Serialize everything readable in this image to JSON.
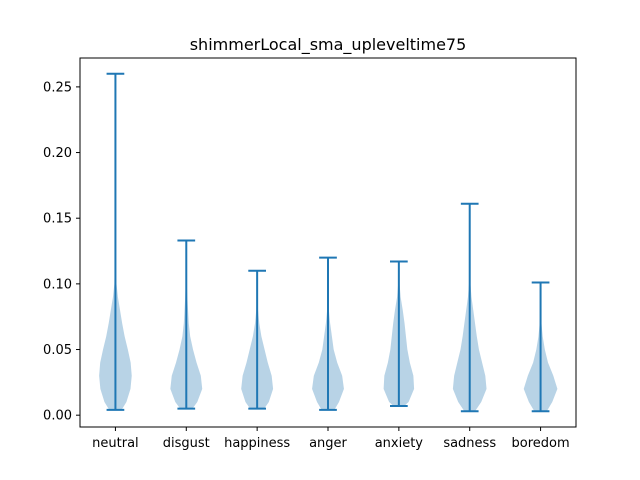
{
  "chart_data": {
    "type": "violin",
    "title": "shimmerLocal_sma_upleveltime75",
    "xlabel": "",
    "ylabel": "",
    "categories": [
      "neutral",
      "disgust",
      "happiness",
      "anger",
      "anxiety",
      "sadness",
      "boredom"
    ],
    "ylim": [
      -0.009,
      0.272
    ],
    "yticks": [
      0.0,
      0.05,
      0.1,
      0.15,
      0.2,
      0.25
    ],
    "ytick_labels": [
      "0.00",
      "0.05",
      "0.10",
      "0.15",
      "0.20",
      "0.25"
    ],
    "grid": false,
    "violin_color": "#a6c8e0",
    "line_color": "#1f77b4",
    "series": [
      {
        "category": "neutral",
        "min": 0.004,
        "max": 0.26,
        "density": [
          [
            0.004,
            0.35
          ],
          [
            0.01,
            0.62
          ],
          [
            0.02,
            0.85
          ],
          [
            0.03,
            0.92
          ],
          [
            0.04,
            0.86
          ],
          [
            0.05,
            0.7
          ],
          [
            0.06,
            0.52
          ],
          [
            0.07,
            0.38
          ],
          [
            0.08,
            0.26
          ],
          [
            0.09,
            0.14
          ],
          [
            0.1,
            0.06
          ],
          [
            0.12,
            0.03
          ],
          [
            0.15,
            0.02
          ],
          [
            0.2,
            0.01
          ],
          [
            0.26,
            0.005
          ]
        ]
      },
      {
        "category": "disgust",
        "min": 0.005,
        "max": 0.133,
        "density": [
          [
            0.005,
            0.35
          ],
          [
            0.01,
            0.62
          ],
          [
            0.02,
            0.9
          ],
          [
            0.03,
            0.82
          ],
          [
            0.04,
            0.58
          ],
          [
            0.05,
            0.38
          ],
          [
            0.06,
            0.22
          ],
          [
            0.07,
            0.14
          ],
          [
            0.08,
            0.1
          ],
          [
            0.09,
            0.06
          ],
          [
            0.1,
            0.03
          ],
          [
            0.133,
            0.005
          ]
        ]
      },
      {
        "category": "happiness",
        "min": 0.005,
        "max": 0.11,
        "density": [
          [
            0.005,
            0.4
          ],
          [
            0.01,
            0.66
          ],
          [
            0.02,
            0.9
          ],
          [
            0.03,
            0.82
          ],
          [
            0.04,
            0.6
          ],
          [
            0.05,
            0.42
          ],
          [
            0.06,
            0.24
          ],
          [
            0.07,
            0.12
          ],
          [
            0.08,
            0.05
          ],
          [
            0.09,
            0.02
          ],
          [
            0.11,
            0.005
          ]
        ]
      },
      {
        "category": "anger",
        "min": 0.004,
        "max": 0.12,
        "density": [
          [
            0.004,
            0.36
          ],
          [
            0.01,
            0.62
          ],
          [
            0.02,
            0.9
          ],
          [
            0.03,
            0.8
          ],
          [
            0.04,
            0.52
          ],
          [
            0.05,
            0.32
          ],
          [
            0.06,
            0.22
          ],
          [
            0.07,
            0.12
          ],
          [
            0.08,
            0.05
          ],
          [
            0.09,
            0.02
          ],
          [
            0.12,
            0.005
          ]
        ]
      },
      {
        "category": "anxiety",
        "min": 0.007,
        "max": 0.117,
        "density": [
          [
            0.007,
            0.3
          ],
          [
            0.01,
            0.55
          ],
          [
            0.02,
            0.86
          ],
          [
            0.03,
            0.82
          ],
          [
            0.04,
            0.62
          ],
          [
            0.05,
            0.48
          ],
          [
            0.06,
            0.4
          ],
          [
            0.07,
            0.32
          ],
          [
            0.08,
            0.22
          ],
          [
            0.09,
            0.1
          ],
          [
            0.1,
            0.04
          ],
          [
            0.117,
            0.005
          ]
        ]
      },
      {
        "category": "sadness",
        "min": 0.003,
        "max": 0.161,
        "density": [
          [
            0.003,
            0.3
          ],
          [
            0.01,
            0.65
          ],
          [
            0.02,
            0.95
          ],
          [
            0.03,
            0.88
          ],
          [
            0.04,
            0.7
          ],
          [
            0.05,
            0.52
          ],
          [
            0.06,
            0.4
          ],
          [
            0.07,
            0.3
          ],
          [
            0.08,
            0.2
          ],
          [
            0.09,
            0.1
          ],
          [
            0.1,
            0.04
          ],
          [
            0.13,
            0.015
          ],
          [
            0.161,
            0.005
          ]
        ]
      },
      {
        "category": "boredom",
        "min": 0.003,
        "max": 0.101,
        "density": [
          [
            0.003,
            0.35
          ],
          [
            0.01,
            0.66
          ],
          [
            0.02,
            0.95
          ],
          [
            0.03,
            0.72
          ],
          [
            0.04,
            0.42
          ],
          [
            0.05,
            0.24
          ],
          [
            0.06,
            0.12
          ],
          [
            0.07,
            0.05
          ],
          [
            0.08,
            0.02
          ],
          [
            0.101,
            0.005
          ]
        ]
      }
    ]
  }
}
